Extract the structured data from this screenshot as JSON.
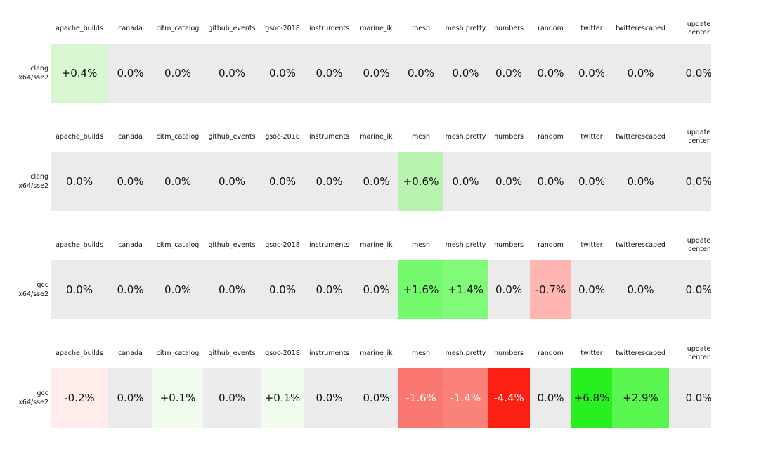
{
  "page": {
    "background": "#ffffff"
  },
  "palette": {
    "default_cell": "#ebebeb",
    "text": "#111111",
    "inverse_text": "#ffffff",
    "positive_strong": "#28f01e",
    "negative_strong": "#fb2013"
  },
  "columns": [
    "apache_builds",
    "canada",
    "citm_catalog",
    "github_events",
    "gsoc-2018",
    "instruments",
    "marine_ik",
    "mesh",
    "mesh.pretty",
    "numbers",
    "random",
    "twitter",
    "twitterescaped",
    "update center"
  ],
  "blocks": [
    {
      "row_label": "clang\nx64/sse2",
      "cells": [
        {
          "text": "+0.4%",
          "bg": "#d7f7d0"
        },
        {
          "text": "0.0%"
        },
        {
          "text": "0.0%"
        },
        {
          "text": "0.0%"
        },
        {
          "text": "0.0%"
        },
        {
          "text": "0.0%"
        },
        {
          "text": "0.0%"
        },
        {
          "text": "0.0%"
        },
        {
          "text": "0.0%"
        },
        {
          "text": "0.0%"
        },
        {
          "text": "0.0%"
        },
        {
          "text": "0.0%"
        },
        {
          "text": "0.0%"
        },
        {
          "text": "0.0%"
        }
      ]
    },
    {
      "row_label": "clang\nx64/sse2",
      "cells": [
        {
          "text": "0.0%"
        },
        {
          "text": "0.0%"
        },
        {
          "text": "0.0%"
        },
        {
          "text": "0.0%"
        },
        {
          "text": "0.0%"
        },
        {
          "text": "0.0%"
        },
        {
          "text": "0.0%"
        },
        {
          "text": "+0.6%",
          "bg": "#b9f3b0"
        },
        {
          "text": "0.0%"
        },
        {
          "text": "0.0%"
        },
        {
          "text": "0.0%"
        },
        {
          "text": "0.0%"
        },
        {
          "text": "0.0%"
        },
        {
          "text": "0.0%"
        }
      ]
    },
    {
      "row_label": "gcc\nx64/sse2",
      "cells": [
        {
          "text": "0.0%"
        },
        {
          "text": "0.0%"
        },
        {
          "text": "0.0%"
        },
        {
          "text": "0.0%"
        },
        {
          "text": "0.0%"
        },
        {
          "text": "0.0%"
        },
        {
          "text": "0.0%"
        },
        {
          "text": "+1.6%",
          "bg": "#75fa6d"
        },
        {
          "text": "+1.4%",
          "bg": "#80fa78"
        },
        {
          "text": "0.0%"
        },
        {
          "text": "-0.7%",
          "bg": "#ffb6b2"
        },
        {
          "text": "0.0%"
        },
        {
          "text": "0.0%"
        },
        {
          "text": "0.0%"
        }
      ]
    },
    {
      "row_label": "gcc\nx64/sse2",
      "cells": [
        {
          "text": "-0.2%",
          "bg": "#ffeceb"
        },
        {
          "text": "0.0%"
        },
        {
          "text": "+0.1%",
          "bg": "#f1fbee"
        },
        {
          "text": "0.0%"
        },
        {
          "text": "+0.1%",
          "bg": "#f1fbee"
        },
        {
          "text": "0.0%"
        },
        {
          "text": "0.0%"
        },
        {
          "text": "-1.6%",
          "bg": "#fa7771",
          "fg": "#ffffff"
        },
        {
          "text": "-1.4%",
          "bg": "#fa827b",
          "fg": "#ffffff"
        },
        {
          "text": "-4.4%",
          "bg": "#fb2013",
          "fg": "#ffffff"
        },
        {
          "text": "0.0%"
        },
        {
          "text": "+6.8%",
          "bg": "#28f01e"
        },
        {
          "text": "+2.9%",
          "bg": "#59f64f"
        },
        {
          "text": "0.0%"
        }
      ]
    }
  ],
  "chart_data": {
    "type": "heatmap",
    "title": "",
    "columns": [
      "apache_builds",
      "canada",
      "citm_catalog",
      "github_events",
      "gsoc-2018",
      "instruments",
      "marine_ik",
      "mesh",
      "mesh.pretty",
      "numbers",
      "random",
      "twitter",
      "twitterescaped",
      "update center"
    ],
    "rows": [
      "clang x64/sse2",
      "clang x64/sse2",
      "gcc x64/sse2",
      "gcc x64/sse2"
    ],
    "values_pct": [
      [
        0.4,
        0.0,
        0.0,
        0.0,
        0.0,
        0.0,
        0.0,
        0.0,
        0.0,
        0.0,
        0.0,
        0.0,
        0.0,
        0.0
      ],
      [
        0.0,
        0.0,
        0.0,
        0.0,
        0.0,
        0.0,
        0.0,
        0.6,
        0.0,
        0.0,
        0.0,
        0.0,
        0.0,
        0.0
      ],
      [
        0.0,
        0.0,
        0.0,
        0.0,
        0.0,
        0.0,
        0.0,
        1.6,
        1.4,
        0.0,
        -0.7,
        0.0,
        0.0,
        0.0
      ],
      [
        -0.2,
        0.0,
        0.1,
        0.0,
        0.1,
        0.0,
        0.0,
        -1.6,
        -1.4,
        -4.4,
        0.0,
        6.8,
        2.9,
        0.0
      ]
    ],
    "value_format": "signed percent, one decimal",
    "colormap": "white-to-green for positive, white-to-red for negative, light gray for zero",
    "legend": "none",
    "grid": "off",
    "layout": "four stacked single-row heatmap tables, each with its own column header row; last column clipped at right edge"
  }
}
